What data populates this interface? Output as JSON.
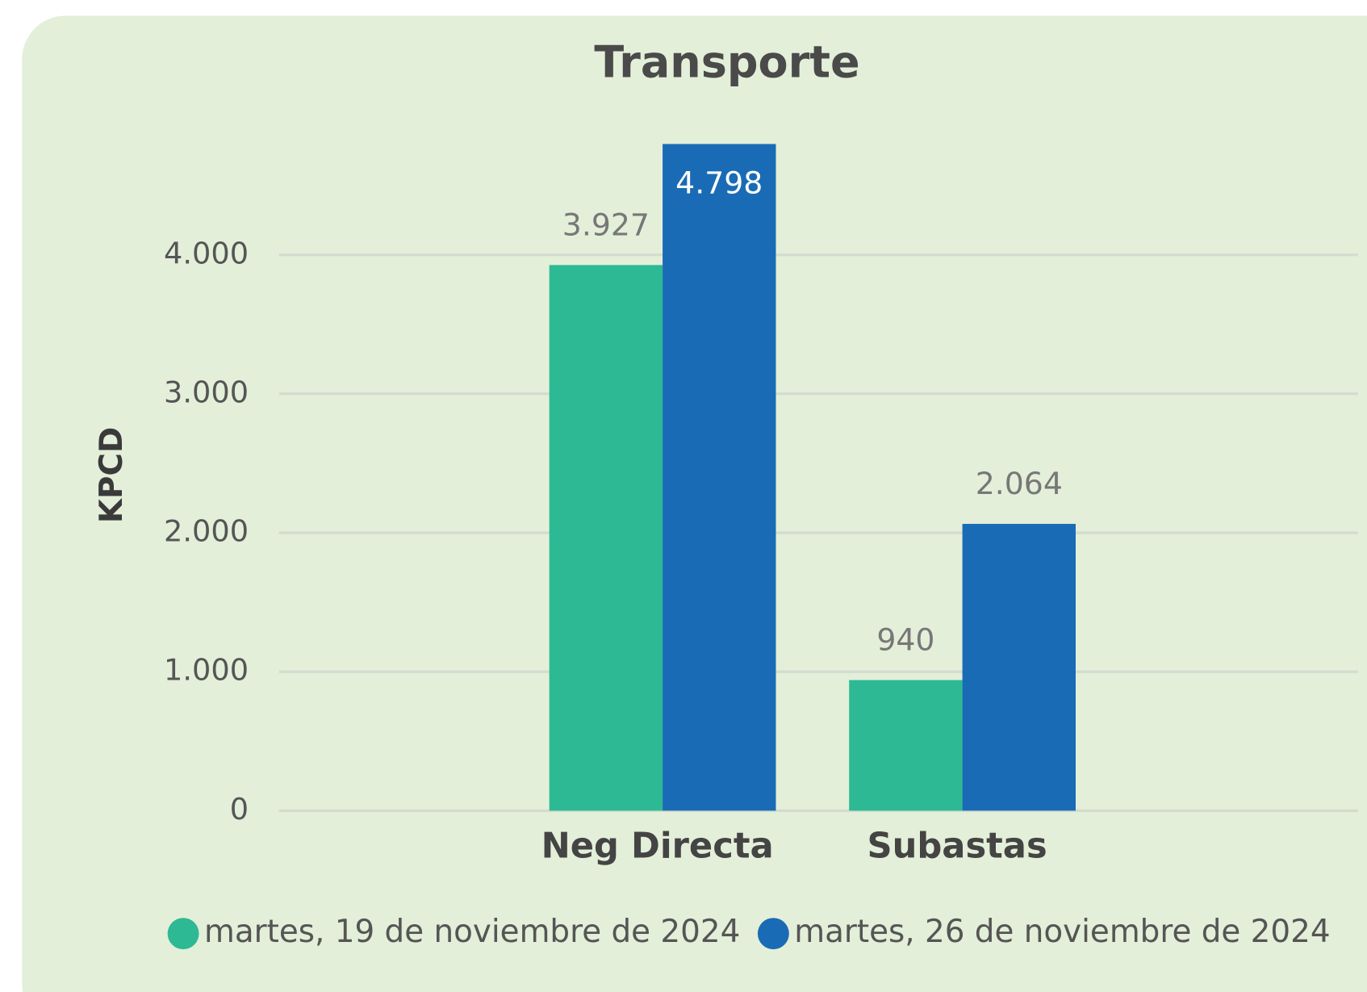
{
  "chart_data": {
    "type": "bar",
    "title": "Transporte",
    "y_label": "KPCD",
    "categories": [
      "Neg Directa",
      "Subastas"
    ],
    "series": [
      {
        "name": "martes, 19 de noviembre de 2024",
        "color": "#2db994",
        "values": [
          3927,
          940
        ],
        "value_labels": [
          "3.927",
          "940"
        ]
      },
      {
        "name": "martes, 26 de noviembre de 2024",
        "color": "#1a6bb5",
        "values": [
          4798,
          2064
        ],
        "value_labels": [
          "4.798",
          "2.064"
        ]
      }
    ],
    "ylim": [
      0,
      5000
    ],
    "yticks": [
      0,
      {
        "value": 1000,
        "label": "1.000"
      },
      {
        "value": 2000,
        "label": "2.000"
      },
      {
        "value": 3000,
        "label": "3.000"
      },
      {
        "value": 4000,
        "label": "4.000"
      }
    ],
    "grid": true,
    "legend": "bottom"
  }
}
